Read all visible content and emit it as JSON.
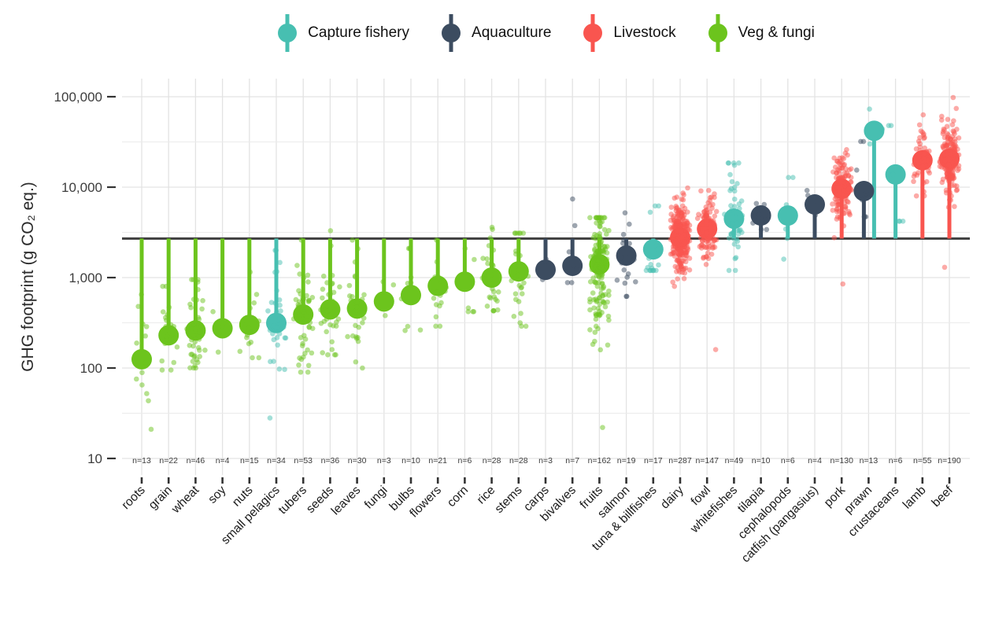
{
  "page": {
    "background": "#ffffff"
  },
  "legend": {
    "items": [
      {
        "label": "Capture fishery",
        "color": "#47BFB1"
      },
      {
        "label": "Aquaculture",
        "color": "#3C4C60"
      },
      {
        "label": "Livestock",
        "color": "#F9554F"
      },
      {
        "label": "Veg & fungi",
        "color": "#6CC41D"
      }
    ]
  },
  "y_axis": {
    "label": "GHG footprint (g CO₂ eq.)",
    "ticks": [
      {
        "label": "100,000",
        "value": 100000
      },
      {
        "label": "10,000",
        "value": 10000
      },
      {
        "label": "1,000",
        "value": 1000
      },
      {
        "label": "100",
        "value": 100
      },
      {
        "label": "10",
        "value": 10
      }
    ],
    "minor_tick_values": [
      31623,
      3162,
      316,
      31.6
    ],
    "scale": "log10"
  },
  "chart_data": {
    "type": "scatter",
    "subtype": "lollipop-with-jitter",
    "title": "",
    "xlabel": "",
    "ylabel": "GHG footprint (g CO₂ eq.)",
    "yscale": "log10",
    "ylim": [
      7,
      160000
    ],
    "grid": "on",
    "legend_position": "top",
    "reference_line": {
      "value": 2700,
      "color": "#3F3F3F",
      "note": "horizontal benchmark line"
    },
    "groups": {
      "Capture fishery": "#47BFB1",
      "Aquaculture": "#3C4C60",
      "Livestock": "#F9554F",
      "Veg & fungi": "#6CC41D"
    },
    "categories": [
      {
        "label": "roots",
        "n": 13,
        "n_label": "n=13",
        "series": [
          {
            "group": "Veg & fungi",
            "median": 125,
            "range": [
              21,
              650
            ],
            "sigma": 0.3
          }
        ]
      },
      {
        "label": "grain",
        "n": 22,
        "n_label": "n=22",
        "series": [
          {
            "group": "Veg & fungi",
            "median": 230,
            "range": [
              95,
              800
            ],
            "sigma": 0.25
          }
        ]
      },
      {
        "label": "wheat",
        "n": 46,
        "n_label": "n=46",
        "series": [
          {
            "group": "Veg & fungi",
            "median": 260,
            "range": [
              100,
              950
            ],
            "sigma": 0.25
          }
        ]
      },
      {
        "label": "soy",
        "n": 4,
        "n_label": "n=4",
        "series": [
          {
            "group": "Veg & fungi",
            "median": 275,
            "range": [
              150,
              420
            ],
            "sigma": 0.2
          }
        ]
      },
      {
        "label": "nuts",
        "n": 15,
        "n_label": "n=15",
        "series": [
          {
            "group": "Veg & fungi",
            "median": 300,
            "range": [
              130,
              1150
            ],
            "sigma": 0.3
          }
        ]
      },
      {
        "label": "small pelagics",
        "n": 34,
        "n_label": "n=34",
        "series": [
          {
            "group": "Capture fishery",
            "median": 315,
            "range": [
              28,
              2000
            ],
            "sigma": 0.3
          }
        ]
      },
      {
        "label": "tubers",
        "n": 53,
        "n_label": "n=53",
        "series": [
          {
            "group": "Veg & fungi",
            "median": 390,
            "range": [
              90,
              2600
            ],
            "sigma": 0.3
          }
        ]
      },
      {
        "label": "seeds",
        "n": 36,
        "n_label": "n=36",
        "series": [
          {
            "group": "Veg & fungi",
            "median": 445,
            "range": [
              140,
              3300
            ],
            "sigma": 0.3
          }
        ]
      },
      {
        "label": "leaves",
        "n": 30,
        "n_label": "n=30",
        "series": [
          {
            "group": "Veg & fungi",
            "median": 455,
            "range": [
              100,
              2600
            ],
            "sigma": 0.33
          }
        ]
      },
      {
        "label": "fungi",
        "n": 3,
        "n_label": "n=3",
        "series": [
          {
            "group": "Veg & fungi",
            "median": 545,
            "range": [
              380,
              900
            ],
            "sigma": 0.2
          }
        ]
      },
      {
        "label": "bulbs",
        "n": 10,
        "n_label": "n=10",
        "series": [
          {
            "group": "Veg & fungi",
            "median": 640,
            "range": [
              260,
              2100
            ],
            "sigma": 0.3
          }
        ]
      },
      {
        "label": "flowers",
        "n": 21,
        "n_label": "n=21",
        "series": [
          {
            "group": "Veg & fungi",
            "median": 810,
            "range": [
              290,
              2600
            ],
            "sigma": 0.28
          }
        ]
      },
      {
        "label": "corn",
        "n": 6,
        "n_label": "n=6",
        "series": [
          {
            "group": "Veg & fungi",
            "median": 900,
            "range": [
              420,
              2100
            ],
            "sigma": 0.3
          }
        ]
      },
      {
        "label": "rice",
        "n": 28,
        "n_label": "n=28",
        "series": [
          {
            "group": "Veg & fungi",
            "median": 1000,
            "range": [
              430,
              3600
            ],
            "sigma": 0.25
          }
        ]
      },
      {
        "label": "stems",
        "n": 28,
        "n_label": "n=28",
        "series": [
          {
            "group": "Veg & fungi",
            "median": 1170,
            "range": [
              290,
              3100
            ],
            "sigma": 0.3
          }
        ]
      },
      {
        "label": "carps",
        "n": 3,
        "n_label": "n=3",
        "series": [
          {
            "group": "Aquaculture",
            "median": 1220,
            "range": [
              950,
              1600
            ],
            "sigma": 0.15
          }
        ]
      },
      {
        "label": "bivalves",
        "n": 7,
        "n_label": "n=7",
        "series": [
          {
            "group": "Aquaculture",
            "median": 1350,
            "range": [
              880,
              7400
            ],
            "sigma": 0.3
          }
        ]
      },
      {
        "label": "fruits",
        "n": 162,
        "n_label": "n=162",
        "series": [
          {
            "group": "Veg & fungi",
            "median": 1400,
            "range": [
              22,
              4600
            ],
            "sigma": 0.35
          }
        ]
      },
      {
        "label": "salmon",
        "n": 19,
        "n_label": "n=19",
        "series": [
          {
            "group": "Aquaculture",
            "median": 1750,
            "range": [
              620,
              5200
            ],
            "sigma": 0.25
          }
        ]
      },
      {
        "label": "tuna & billfishes",
        "n": 17,
        "n_label": "n=17",
        "series": [
          {
            "group": "Capture fishery",
            "median": 2050,
            "range": [
              1200,
              6200
            ],
            "sigma": 0.25
          }
        ]
      },
      {
        "label": "dairy",
        "n": 287,
        "n_label": "n=287",
        "series": [
          {
            "group": "Livestock",
            "median": 2770,
            "range": [
              800,
              9800
            ],
            "sigma": 0.18
          }
        ]
      },
      {
        "label": "fowl",
        "n": 147,
        "n_label": "n=147",
        "series": [
          {
            "group": "Livestock",
            "median": 3450,
            "range": [
              160,
              9200
            ],
            "sigma": 0.17
          }
        ]
      },
      {
        "label": "whitefishes",
        "n": 49,
        "n_label": "n=49",
        "series": [
          {
            "group": "Capture fishery",
            "median": 4480,
            "range": [
              1200,
              18500
            ],
            "sigma": 0.3
          }
        ]
      },
      {
        "label": "tilapia",
        "n": 10,
        "n_label": "n=10",
        "series": [
          {
            "group": "Aquaculture",
            "median": 4860,
            "range": [
              3400,
              6600
            ],
            "sigma": 0.12
          }
        ]
      },
      {
        "label": "cephalopods",
        "n": 6,
        "n_label": "n=6",
        "series": [
          {
            "group": "Capture fishery",
            "median": 4850,
            "range": [
              1600,
              12800
            ],
            "sigma": 0.35
          }
        ]
      },
      {
        "label": "catfish (pangasius)",
        "n": 4,
        "n_label": "n=4",
        "series": [
          {
            "group": "Aquaculture",
            "median": 6440,
            "range": [
              4900,
              9200
            ],
            "sigma": 0.12
          }
        ]
      },
      {
        "label": "pork",
        "n": 130,
        "n_label": "n=130",
        "series": [
          {
            "group": "Livestock",
            "median": 9600,
            "range": [
              850,
              26000
            ],
            "sigma": 0.2
          }
        ]
      },
      {
        "label": "prawn",
        "n": 13,
        "n_label": "n=13",
        "series": [
          {
            "group": "Aquaculture",
            "median": 9050,
            "range": [
              4700,
              32000
            ],
            "sigma": 0.28,
            "points": 10,
            "dodge": -6
          },
          {
            "group": "Capture fishery",
            "median": 42000,
            "range": [
              30000,
              73000
            ],
            "sigma": 0.25,
            "points": 3,
            "dodge": 7
          }
        ]
      },
      {
        "label": "crustaceans",
        "n": 6,
        "n_label": "n=6",
        "series": [
          {
            "group": "Capture fishery",
            "median": 13800,
            "range": [
              4200,
              48000
            ],
            "sigma": 0.4
          }
        ]
      },
      {
        "label": "lamb",
        "n": 55,
        "n_label": "n=55",
        "series": [
          {
            "group": "Livestock",
            "median": 19800,
            "range": [
              8000,
              63000
            ],
            "sigma": 0.18
          }
        ]
      },
      {
        "label": "beef",
        "n": 190,
        "n_label": "n=190",
        "series": [
          {
            "group": "Livestock",
            "median": 20600,
            "range": [
              1300,
              98000
            ],
            "sigma": 0.2
          }
        ]
      }
    ]
  },
  "style": {
    "grid_major_color": "#E3E3E3",
    "grid_minor_color": "#EBEBEB",
    "tick_color": "#333333",
    "y_tick_label_color": "#3d3d3d",
    "x_label_color": "#1b1b1b",
    "n_label_color": "#3d3d3d"
  }
}
